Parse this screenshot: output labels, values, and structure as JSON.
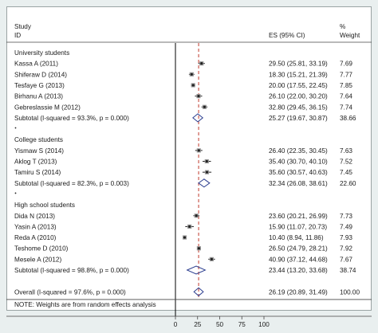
{
  "header": {
    "col1_line1": "Study",
    "col1_line2": "ID",
    "col_es": "ES (95% CI)",
    "col_w_line1": "%",
    "col_w_line2": "Weight"
  },
  "note": "NOTE: Weights are from random effects analysis",
  "colors": {
    "background": "#e9efef",
    "plot_bg": "#ffffff",
    "null_line": "#000000",
    "overall_line": "#c0392b",
    "diamond": "#2c3e8f",
    "point": "#222222"
  },
  "chart_data": {
    "type": "forest",
    "xlim": [
      0,
      100
    ],
    "xticks": [
      "0",
      "25",
      "50",
      "75",
      "100"
    ],
    "overall_es": 26.19,
    "groups": [
      {
        "label": "University students",
        "studies": [
          {
            "study": "Kassa A (2011)",
            "es": 29.5,
            "lo": 25.81,
            "hi": 33.19,
            "ci_text": "29.50 (25.81, 33.19)",
            "weight": "7.69"
          },
          {
            "study": "Shiferaw D (2014)",
            "es": 18.3,
            "lo": 15.21,
            "hi": 21.39,
            "ci_text": "18.30 (15.21, 21.39)",
            "weight": "7.77"
          },
          {
            "study": "Tesfaye G (2013)",
            "es": 20.0,
            "lo": 17.55,
            "hi": 22.45,
            "ci_text": "20.00 (17.55, 22.45)",
            "weight": "7.85"
          },
          {
            "study": "Birhanu A (2013)",
            "es": 26.1,
            "lo": 22.0,
            "hi": 30.2,
            "ci_text": "26.10 (22.00, 30.20)",
            "weight": "7.64"
          },
          {
            "study": "Gebreslassie M (2012)",
            "es": 32.8,
            "lo": 29.45,
            "hi": 36.15,
            "ci_text": "32.80 (29.45, 36.15)",
            "weight": "7.74"
          }
        ],
        "subtotal": {
          "label": "Subtotal  (I-squared = 93.3%, p = 0.000)",
          "es": 25.27,
          "lo": 19.67,
          "hi": 30.87,
          "ci_text": "25.27 (19.67, 30.87)",
          "weight": "38.66"
        }
      },
      {
        "label": "College students",
        "studies": [
          {
            "study": "Yismaw S (2014)",
            "es": 26.4,
            "lo": 22.35,
            "hi": 30.45,
            "ci_text": "26.40 (22.35, 30.45)",
            "weight": "7.63"
          },
          {
            "study": "Aklog T (2013)",
            "es": 35.4,
            "lo": 30.7,
            "hi": 40.1,
            "ci_text": "35.40 (30.70, 40.10)",
            "weight": "7.52"
          },
          {
            "study": "Tamiru S (2014)",
            "es": 35.6,
            "lo": 30.57,
            "hi": 40.63,
            "ci_text": "35.60 (30.57, 40.63)",
            "weight": "7.45"
          }
        ],
        "subtotal": {
          "label": "Subtotal  (I-squared = 82.3%, p = 0.003)",
          "es": 32.34,
          "lo": 26.08,
          "hi": 38.61,
          "ci_text": "32.34 (26.08, 38.61)",
          "weight": "22.60"
        }
      },
      {
        "label": "High school students",
        "studies": [
          {
            "study": "Dida N (2013)",
            "es": 23.6,
            "lo": 20.21,
            "hi": 26.99,
            "ci_text": "23.60 (20.21, 26.99)",
            "weight": "7.73"
          },
          {
            "study": "Yasin A (2013)",
            "es": 15.9,
            "lo": 11.07,
            "hi": 20.73,
            "ci_text": "15.90 (11.07, 20.73)",
            "weight": "7.49"
          },
          {
            "study": "Reda A (2010)",
            "es": 10.4,
            "lo": 8.94,
            "hi": 11.86,
            "ci_text": "10.40 (8.94, 11.86)",
            "weight": "7.93"
          },
          {
            "study": "Teshome D (2010)",
            "es": 26.5,
            "lo": 24.79,
            "hi": 28.21,
            "ci_text": "26.50 (24.79, 28.21)",
            "weight": "7.92"
          },
          {
            "study": "Mesele A (2012)",
            "es": 40.9,
            "lo": 37.12,
            "hi": 44.68,
            "ci_text": "40.90 (37.12, 44.68)",
            "weight": "7.67"
          }
        ],
        "subtotal": {
          "label": "Subtotal  (I-squared = 98.8%, p = 0.000)",
          "es": 23.44,
          "lo": 13.2,
          "hi": 33.68,
          "ci_text": "23.44 (13.20, 33.68)",
          "weight": "38.74"
        }
      }
    ],
    "overall": {
      "label": "Overall  (I-squared = 97.6%, p = 0.000)",
      "es": 26.19,
      "lo": 20.89,
      "hi": 31.49,
      "ci_text": "26.19 (20.89, 31.49)",
      "weight": "100.00"
    }
  }
}
